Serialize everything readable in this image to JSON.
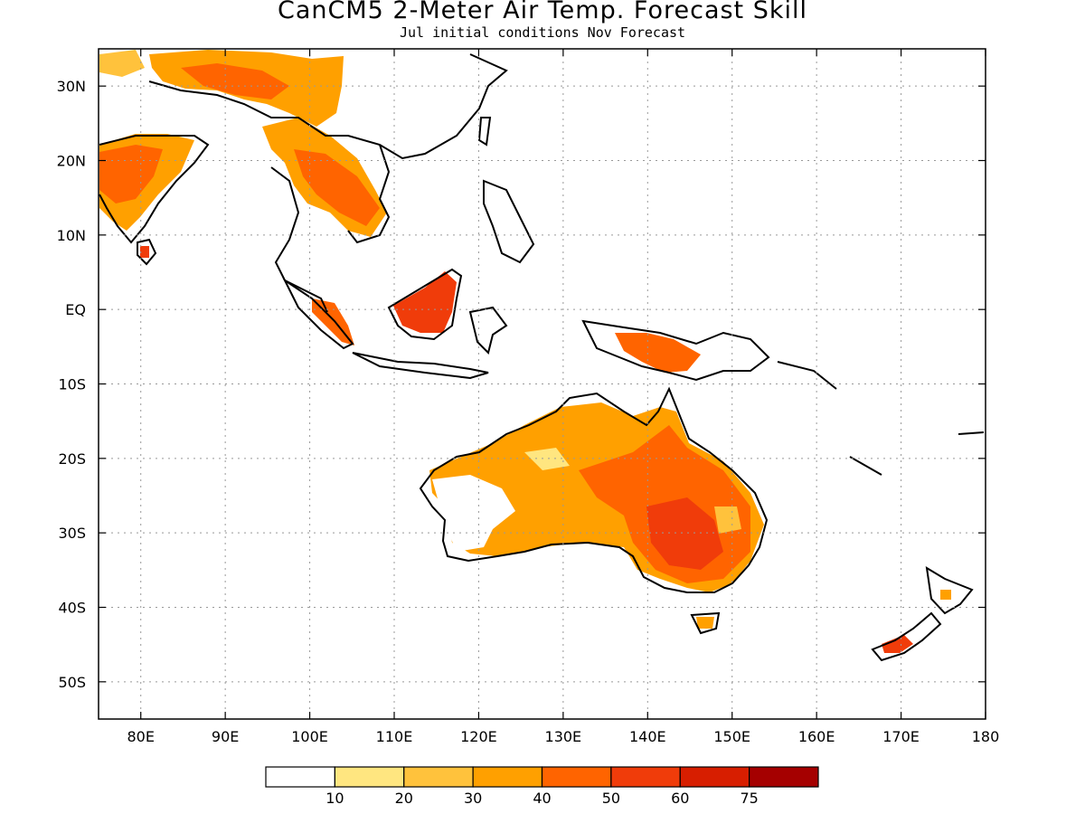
{
  "title": "CanCM5 2-Meter Air Temp. Forecast Skill",
  "subtitle": "Jul initial conditions  Nov Forecast",
  "map": {
    "lon_range": [
      75,
      180
    ],
    "lat_range": [
      -55,
      35
    ],
    "lat_ticks": [
      {
        "lat": 30,
        "label": "30N"
      },
      {
        "lat": 20,
        "label": "20N"
      },
      {
        "lat": 10,
        "label": "10N"
      },
      {
        "lat": 0,
        "label": "EQ"
      },
      {
        "lat": -10,
        "label": "10S"
      },
      {
        "lat": -20,
        "label": "20S"
      },
      {
        "lat": -30,
        "label": "30S"
      },
      {
        "lat": -40,
        "label": "40S"
      },
      {
        "lat": -50,
        "label": "50S"
      }
    ],
    "lon_ticks": [
      {
        "lon": 80,
        "label": "80E"
      },
      {
        "lon": 90,
        "label": "90E"
      },
      {
        "lon": 100,
        "label": "100E"
      },
      {
        "lon": 110,
        "label": "110E"
      },
      {
        "lon": 120,
        "label": "120E"
      },
      {
        "lon": 130,
        "label": "130E"
      },
      {
        "lon": 140,
        "label": "140E"
      },
      {
        "lon": 150,
        "label": "150E"
      },
      {
        "lon": 160,
        "label": "160E"
      },
      {
        "lon": 170,
        "label": "170E"
      },
      {
        "lon": 180,
        "label": "180"
      }
    ],
    "grid": true,
    "grid_style": "dotted"
  },
  "colorbar": {
    "colors": [
      "#ffffff",
      "#ffe680",
      "#ffc23c",
      "#ffa000",
      "#ff6400",
      "#f03c0a",
      "#d71e00",
      "#a50000"
    ],
    "labels": [
      "10",
      "20",
      "30",
      "40",
      "50",
      "60",
      "75"
    ]
  }
}
